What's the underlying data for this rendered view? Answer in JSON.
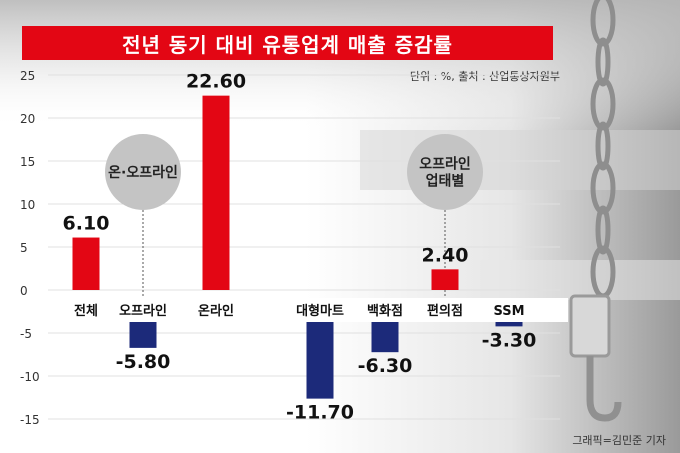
{
  "title": "전년 동기 대비 유통업계 매출 증감률",
  "source": "단위 : %, 출처 : 산업통상자원부",
  "credit": "그래픽=김민준 기자",
  "colors": {
    "positive": "#e30614",
    "negative": "#1c2a7a",
    "banner": "#e30614",
    "bubble": "#c4c4c4"
  },
  "chart_data": {
    "type": "bar",
    "ylim": [
      -15,
      25
    ],
    "yticks": [
      25,
      20,
      15,
      10,
      5,
      0,
      -5,
      -10,
      -15
    ],
    "categories": [
      "전체",
      "오프라인",
      "온라인",
      "대형마트",
      "백화점",
      "편의점",
      "SSM"
    ],
    "values": [
      6.1,
      -5.8,
      22.6,
      -11.7,
      -6.3,
      2.4,
      -3.3
    ],
    "value_labels": [
      "6.10",
      "-5.80",
      "22.60",
      "-11.70",
      "-6.30",
      "2.40",
      "-3.30"
    ],
    "annotations": [
      {
        "text": "온·오프라인",
        "category": "오프라인"
      },
      {
        "text": "오프라인\n업태별",
        "category": "편의점"
      }
    ]
  }
}
